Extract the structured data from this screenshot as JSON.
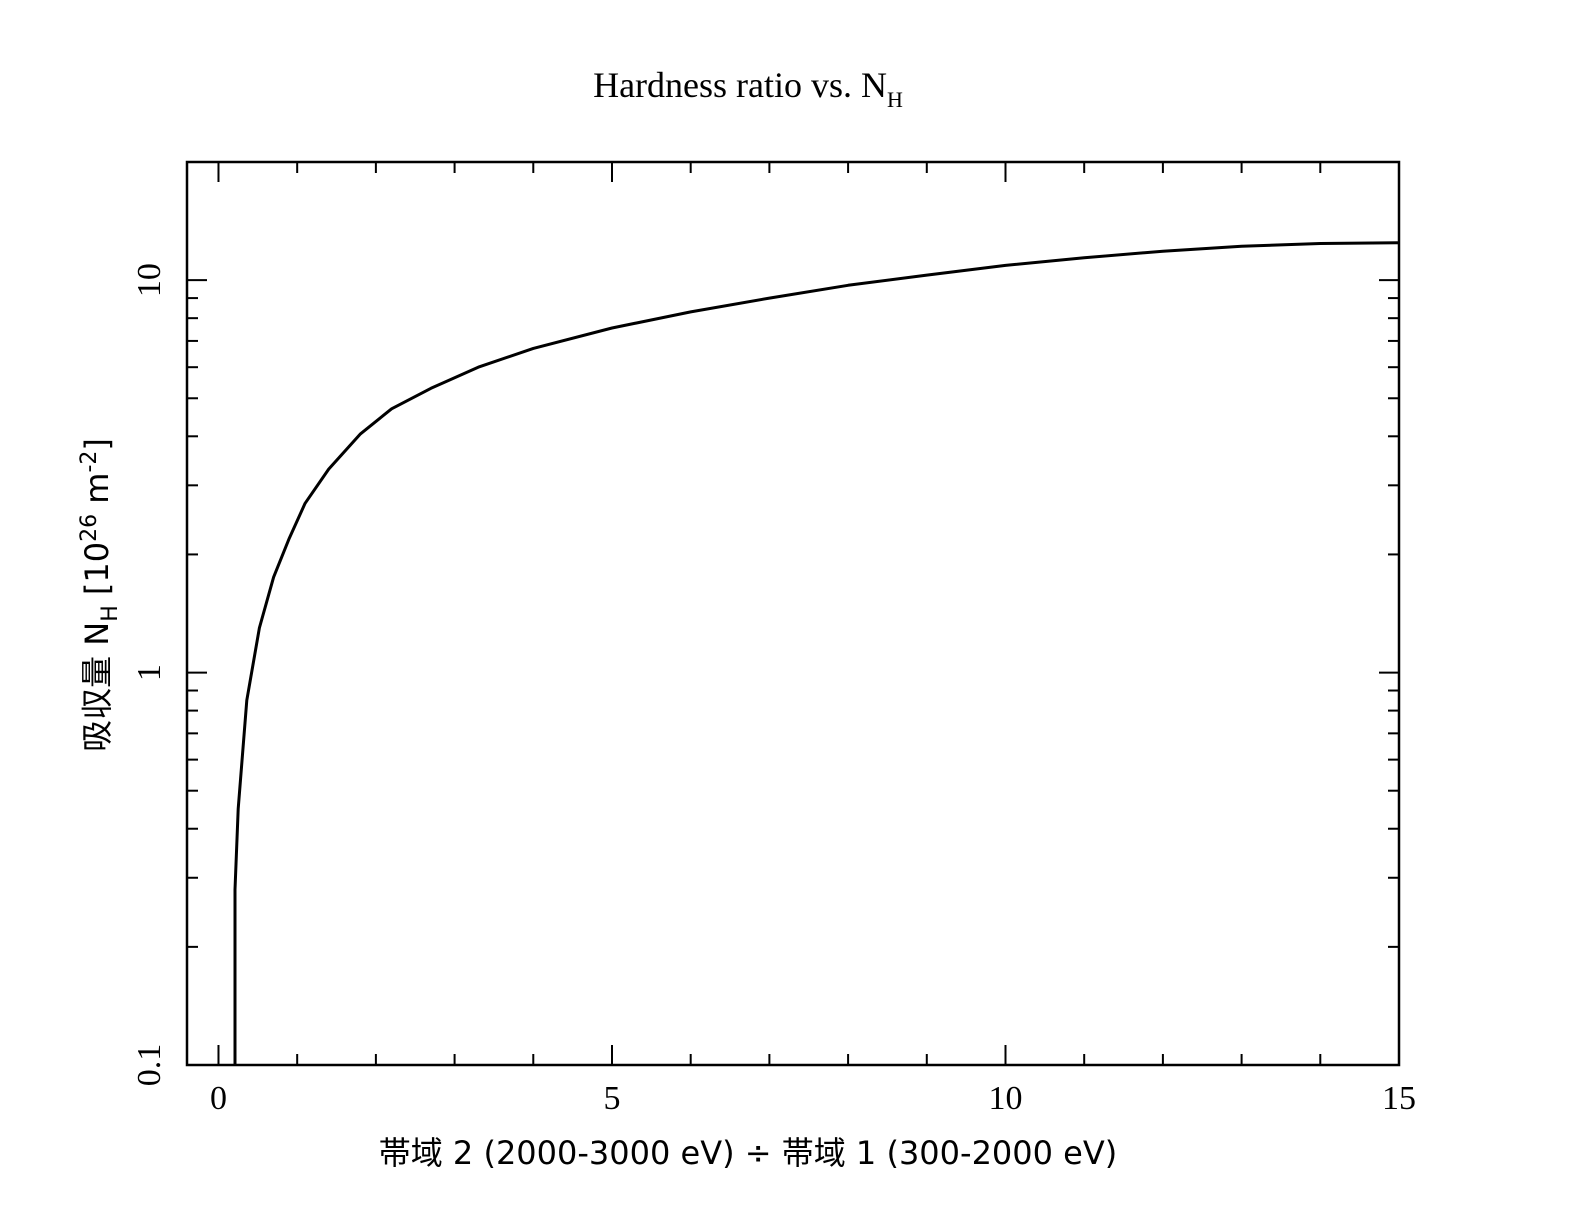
{
  "chart_data": {
    "type": "line",
    "title": {
      "main": "Hardness ratio vs. N",
      "sub": "H"
    },
    "xlabel": "帯域 2 (2000-3000 eV) ÷ 帯域 1 (300-2000 eV)",
    "ylabel": {
      "prefix": "吸収量 N",
      "sub": "H",
      "unit_pre": " [10",
      "exp": "26",
      "unit_mid": " m",
      "exp2": "-2",
      "unit_post": "]"
    },
    "xlim": [
      -0.4,
      15
    ],
    "ylim": [
      0.1,
      20
    ],
    "yscale": "log",
    "x_ticks": [
      0,
      5,
      10,
      15
    ],
    "x_tick_labels": [
      "0",
      "5",
      "10",
      "15"
    ],
    "y_ticks": [
      0.1,
      1,
      10
    ],
    "y_tick_labels": [
      "0.1",
      "1",
      "10"
    ],
    "grid": false,
    "series": [
      {
        "x": [
          0.21,
          0.21,
          0.25,
          0.36,
          0.52,
          0.7,
          0.9,
          1.1,
          1.4,
          1.8,
          2.2,
          2.7,
          3.3,
          4.0,
          5.0,
          6.0,
          7.0,
          8.0,
          9.0,
          10.0,
          11.0,
          12.0,
          13.0,
          14.0,
          15.0
        ],
        "y": [
          0.1,
          0.28,
          0.45,
          0.85,
          1.3,
          1.75,
          2.2,
          2.7,
          3.3,
          4.05,
          4.7,
          5.3,
          6.0,
          6.7,
          7.55,
          8.3,
          9.0,
          9.7,
          10.3,
          10.9,
          11.4,
          11.85,
          12.2,
          12.4,
          12.45
        ]
      }
    ]
  }
}
